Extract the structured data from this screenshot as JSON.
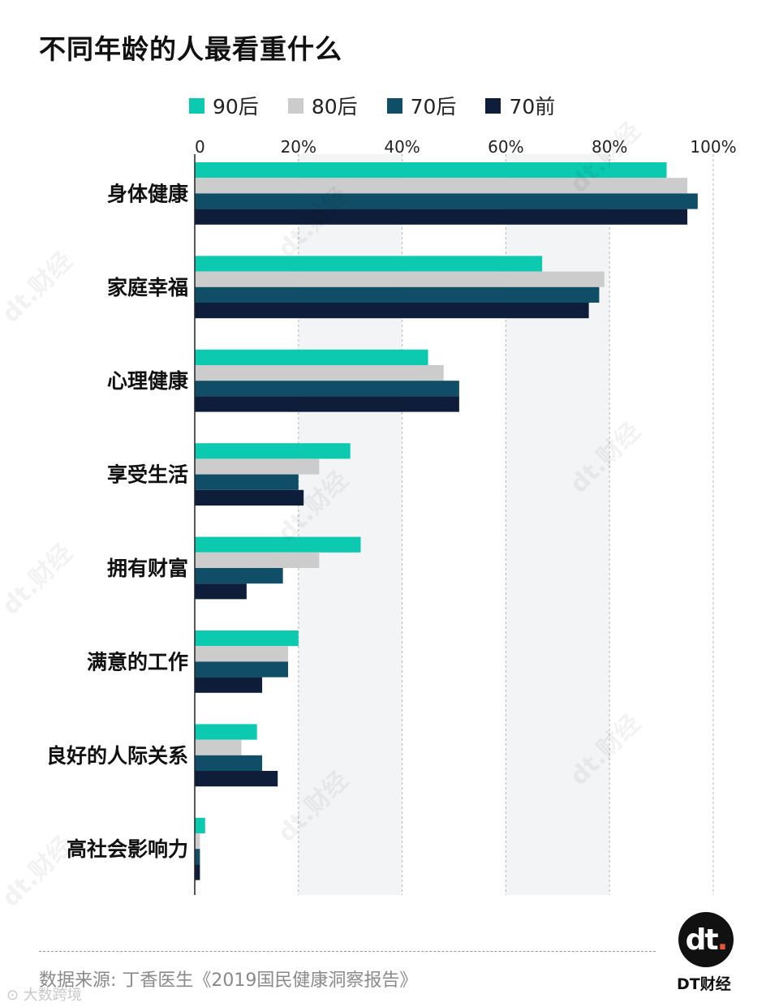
{
  "title": "不同年龄的人最看重什么",
  "source": "数据来源: 丁香医生《2019国民健康洞察报告》",
  "brand": {
    "logo_glyph": "dt",
    "logo_dot": ".",
    "name": "DT财经",
    "watermark": "dt.财经",
    "corner_mark": "⊙ 大数跨境"
  },
  "chart_data": {
    "type": "bar",
    "orientation": "horizontal",
    "title": "不同年龄的人最看重什么",
    "categories": [
      "身体健康",
      "家庭幸福",
      "心理健康",
      "享受生活",
      "拥有财富",
      "满意的工作",
      "良好的人际关系",
      "高社会影响力"
    ],
    "series": [
      {
        "name": "90后",
        "color": "#0ccab0",
        "values": [
          91,
          67,
          45,
          30,
          32,
          20,
          12,
          2
        ]
      },
      {
        "name": "80后",
        "color": "#cccccc",
        "values": [
          95,
          79,
          48,
          24,
          24,
          18,
          9,
          1
        ]
      },
      {
        "name": "70后",
        "color": "#0f4e66",
        "values": [
          97,
          78,
          51,
          20,
          17,
          18,
          13,
          1
        ]
      },
      {
        "name": "70前",
        "color": "#0e1d3a",
        "values": [
          95,
          76,
          51,
          21,
          10,
          13,
          16,
          1
        ]
      }
    ],
    "xlim": [
      0,
      100
    ],
    "xticks": [
      0,
      20,
      40,
      60,
      80,
      100
    ],
    "xtick_labels": [
      "0",
      "20%",
      "40%",
      "60%",
      "80%",
      "100%"
    ],
    "grid": "vertical dashed",
    "legend_position": "top"
  }
}
